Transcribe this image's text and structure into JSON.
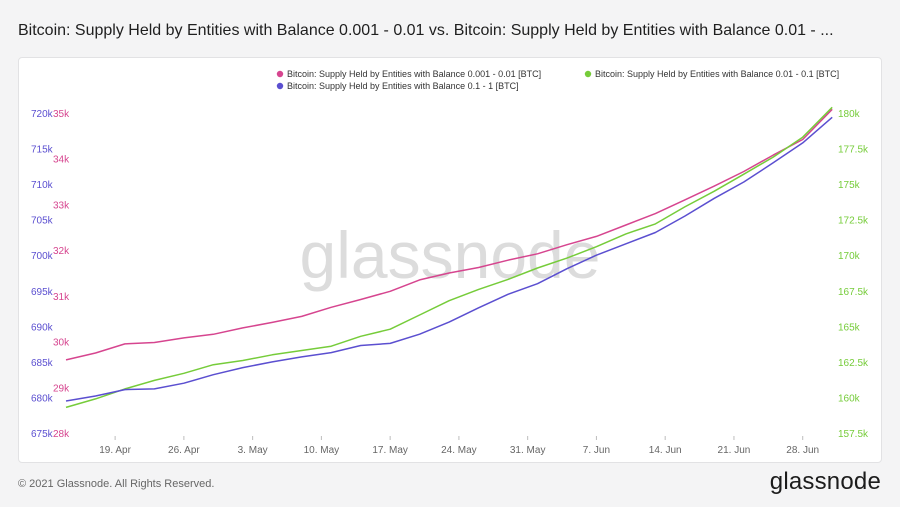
{
  "header": {
    "title": "Bitcoin: Supply Held by Entities with Balance 0.001 - 0.01 vs. Bitcoin: Supply Held by Entities with Balance 0.01 - ..."
  },
  "footer": {
    "copyright": "© 2021 Glassnode. All Rights Reserved.",
    "brand": "glassnode"
  },
  "watermark": "glassnode",
  "colors": {
    "pink": "#d6458f",
    "green": "#76cc3a",
    "blue": "#5b4fd0",
    "x_tick": "#666666"
  },
  "chart_data": {
    "type": "line",
    "legend_placement": "top-right",
    "grid": false,
    "x_ticks": [
      "19. Apr",
      "26. Apr",
      "3. May",
      "10. May",
      "17. May",
      "24. May",
      "31. May",
      "7. Jun",
      "14. Jun",
      "21. Jun",
      "28. Jun"
    ],
    "x_range": [
      "2021-04-14",
      "2021-07-02"
    ],
    "axes": {
      "left_outer": {
        "series": "Bitcoin: Supply Held by Entities with Balance 0.1 - 1 [BTC]",
        "range": [
          675000,
          720000
        ],
        "ticks": [
          "675k",
          "680k",
          "685k",
          "690k",
          "695k",
          "700k",
          "705k",
          "710k",
          "715k",
          "720k"
        ]
      },
      "left_inner": {
        "series": "Bitcoin: Supply Held by Entities with Balance 0.001 - 0.01 [BTC]",
        "range": [
          28000,
          35000
        ],
        "ticks": [
          "28k",
          "29k",
          "30k",
          "31k",
          "32k",
          "33k",
          "34k",
          "35k"
        ]
      },
      "right": {
        "series": "Bitcoin: Supply Held by Entities with Balance 0.01 - 0.1 [BTC]",
        "range": [
          157500,
          180000
        ],
        "ticks": [
          "157.5k",
          "160k",
          "162.5k",
          "165k",
          "167.5k",
          "170k",
          "172.5k",
          "175k",
          "177.5k",
          "180k"
        ]
      }
    },
    "series": [
      {
        "name": "Bitcoin: Supply Held by Entities with Balance 0.001 - 0.01 [BTC]",
        "color": "#d6458f",
        "axis": "left_inner",
        "x": [
          "2021-04-14",
          "2021-04-17",
          "2021-04-20",
          "2021-04-23",
          "2021-04-26",
          "2021-04-29",
          "2021-05-02",
          "2021-05-05",
          "2021-05-08",
          "2021-05-11",
          "2021-05-14",
          "2021-05-17",
          "2021-05-20",
          "2021-05-23",
          "2021-05-26",
          "2021-05-29",
          "2021-06-01",
          "2021-06-04",
          "2021-06-07",
          "2021-06-10",
          "2021-06-13",
          "2021-06-16",
          "2021-06-19",
          "2021-06-22",
          "2021-06-25",
          "2021-06-28",
          "2021-07-01"
        ],
        "values": [
          29.6,
          29.75,
          29.95,
          29.98,
          30.08,
          30.16,
          30.3,
          30.42,
          30.55,
          30.75,
          30.92,
          31.1,
          31.35,
          31.5,
          31.62,
          31.78,
          31.92,
          32.12,
          32.3,
          32.55,
          32.8,
          33.1,
          33.4,
          33.72,
          34.08,
          34.42,
          35.08
        ]
      },
      {
        "name": "Bitcoin: Supply Held by Entities with Balance 0.01 - 0.1 [BTC]",
        "color": "#76cc3a",
        "axis": "right",
        "x": [
          "2021-04-14",
          "2021-04-17",
          "2021-04-20",
          "2021-04-23",
          "2021-04-26",
          "2021-04-29",
          "2021-05-02",
          "2021-05-05",
          "2021-05-08",
          "2021-05-11",
          "2021-05-14",
          "2021-05-17",
          "2021-05-20",
          "2021-05-23",
          "2021-05-26",
          "2021-05-29",
          "2021-06-01",
          "2021-06-04",
          "2021-06-07",
          "2021-06-10",
          "2021-06-13",
          "2021-06-16",
          "2021-06-19",
          "2021-06-22",
          "2021-06-25",
          "2021-06-28",
          "2021-07-01"
        ],
        "values": [
          159.3,
          159.9,
          160.6,
          161.2,
          161.7,
          162.3,
          162.6,
          163.0,
          163.3,
          163.6,
          164.3,
          164.8,
          165.8,
          166.8,
          167.6,
          168.3,
          169.1,
          169.8,
          170.6,
          171.5,
          172.2,
          173.4,
          174.5,
          175.7,
          176.9,
          178.3,
          180.4
        ]
      },
      {
        "name": "Bitcoin: Supply Held by Entities with Balance 0.1 - 1 [BTC]",
        "color": "#5b4fd0",
        "axis": "left_outer",
        "x": [
          "2021-04-14",
          "2021-04-17",
          "2021-04-20",
          "2021-04-23",
          "2021-04-26",
          "2021-04-29",
          "2021-05-02",
          "2021-05-05",
          "2021-05-08",
          "2021-05-11",
          "2021-05-14",
          "2021-05-17",
          "2021-05-20",
          "2021-05-23",
          "2021-05-26",
          "2021-05-29",
          "2021-06-01",
          "2021-06-04",
          "2021-06-07",
          "2021-06-10",
          "2021-06-13",
          "2021-06-16",
          "2021-06-19",
          "2021-06-22",
          "2021-06-25",
          "2021-06-28",
          "2021-07-01"
        ],
        "values": [
          679.5,
          680.2,
          681.1,
          681.2,
          682.0,
          683.2,
          684.2,
          685.0,
          685.7,
          686.3,
          687.3,
          687.6,
          688.9,
          690.6,
          692.6,
          694.5,
          696.0,
          698.1,
          700.0,
          701.6,
          703.2,
          705.5,
          708.0,
          710.3,
          713.0,
          715.8,
          719.4
        ]
      }
    ]
  }
}
